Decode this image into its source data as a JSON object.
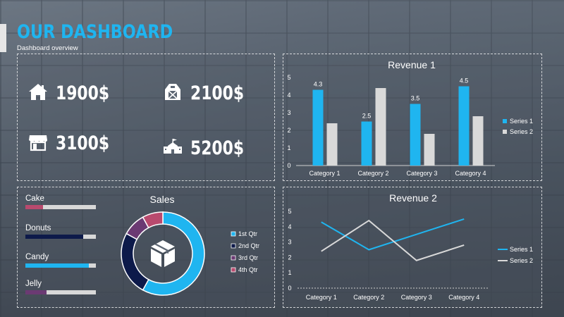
{
  "header": {
    "title": "OUR DASHBOARD",
    "subtitle": "Dashboard overview"
  },
  "colors": {
    "accent": "#1fb5f0",
    "navy": "#0d1a4a",
    "purple": "#6b3a73",
    "pink": "#b94a6e",
    "gray": "#d9d9d9"
  },
  "kpis": [
    {
      "icon": "house-icon",
      "value": "1900$"
    },
    {
      "icon": "barn-icon",
      "value": "2100$"
    },
    {
      "icon": "store-icon",
      "value": "3100$"
    },
    {
      "icon": "school-icon",
      "value": "5200$"
    }
  ],
  "progress": [
    {
      "label": "Cake",
      "value": 0.25,
      "color": "#b94a6e"
    },
    {
      "label": "Donuts",
      "value": 0.82,
      "color": "#0d1a4a"
    },
    {
      "label": "Candy",
      "value": 0.9,
      "color": "#1fb5f0"
    },
    {
      "label": "Jelly",
      "value": 0.3,
      "color": "#6b3a73"
    }
  ],
  "chart_data": [
    {
      "type": "bar",
      "title": "Revenue 1",
      "categories": [
        "Category 1",
        "Category 2",
        "Category 3",
        "Category 4"
      ],
      "series": [
        {
          "name": "Series 1",
          "values": [
            4.3,
            2.5,
            3.5,
            4.5
          ],
          "labels": [
            "4.3",
            "2.5",
            "3.5",
            "4.5"
          ],
          "color": "#1fb5f0"
        },
        {
          "name": "Series 2",
          "values": [
            2.4,
            4.4,
            1.8,
            2.8
          ],
          "color": "#d9d9d9"
        }
      ],
      "ylim": [
        0,
        5
      ],
      "yticks": [
        "0",
        "1",
        "2",
        "3",
        "4",
        "5"
      ],
      "legend": "right"
    },
    {
      "type": "pie",
      "title": "Sales",
      "categories": [
        "1st Qtr",
        "2nd Qtr",
        "3rd Qtr",
        "4th Qtr"
      ],
      "values": [
        58,
        25,
        9,
        8
      ],
      "colors": [
        "#1fb5f0",
        "#0d1a4a",
        "#6b3a73",
        "#b94a6e"
      ],
      "center_icon": "box-icon",
      "legend": "right"
    },
    {
      "type": "line",
      "title": "Revenue 2",
      "categories": [
        "Category 1",
        "Category 2",
        "Category 3",
        "Category 4"
      ],
      "series": [
        {
          "name": "Series 1",
          "values": [
            4.3,
            2.5,
            3.5,
            4.5
          ],
          "color": "#1fb5f0"
        },
        {
          "name": "Series 2",
          "values": [
            2.4,
            4.4,
            1.8,
            2.8
          ],
          "color": "#d9d9d9"
        }
      ],
      "ylim": [
        0,
        5
      ],
      "yticks": [
        "0",
        "1",
        "2",
        "3",
        "4",
        "5"
      ],
      "legend": "right"
    }
  ]
}
